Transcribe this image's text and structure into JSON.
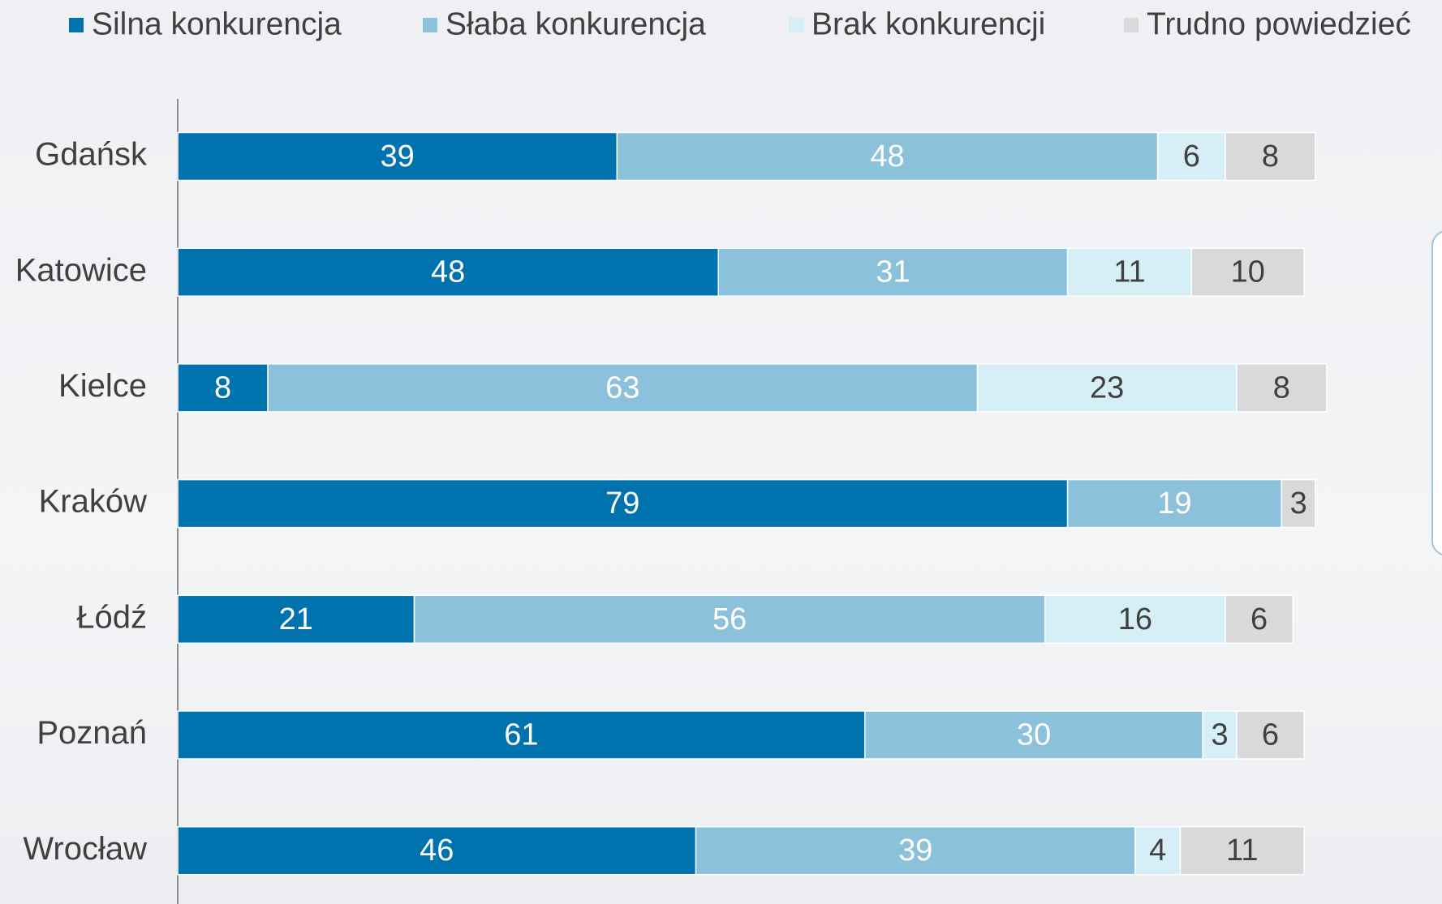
{
  "chart_data": {
    "type": "stacked-bar-horizontal",
    "categories": [
      "Gdańsk",
      "Katowice",
      "Kielce",
      "Kraków",
      "Łódź",
      "Poznań",
      "Wrocław"
    ],
    "series": [
      {
        "name": "Silna konkurencja",
        "color": "#0072ae",
        "values": [
          39,
          48,
          8,
          79,
          21,
          61,
          46
        ]
      },
      {
        "name": "Słaba konkurencja",
        "color": "#8bc1da",
        "values": [
          48,
          31,
          63,
          19,
          56,
          30,
          39
        ]
      },
      {
        "name": "Brak konkurencji",
        "color": "#d6eef5",
        "values": [
          6,
          11,
          23,
          null,
          16,
          3,
          4
        ]
      },
      {
        "name": "Trudno powiedzieć",
        "color": "#d9d9d9",
        "values": [
          8,
          10,
          8,
          3,
          6,
          6,
          11
        ]
      }
    ],
    "xlim": [
      0,
      101
    ],
    "legend": "top"
  }
}
